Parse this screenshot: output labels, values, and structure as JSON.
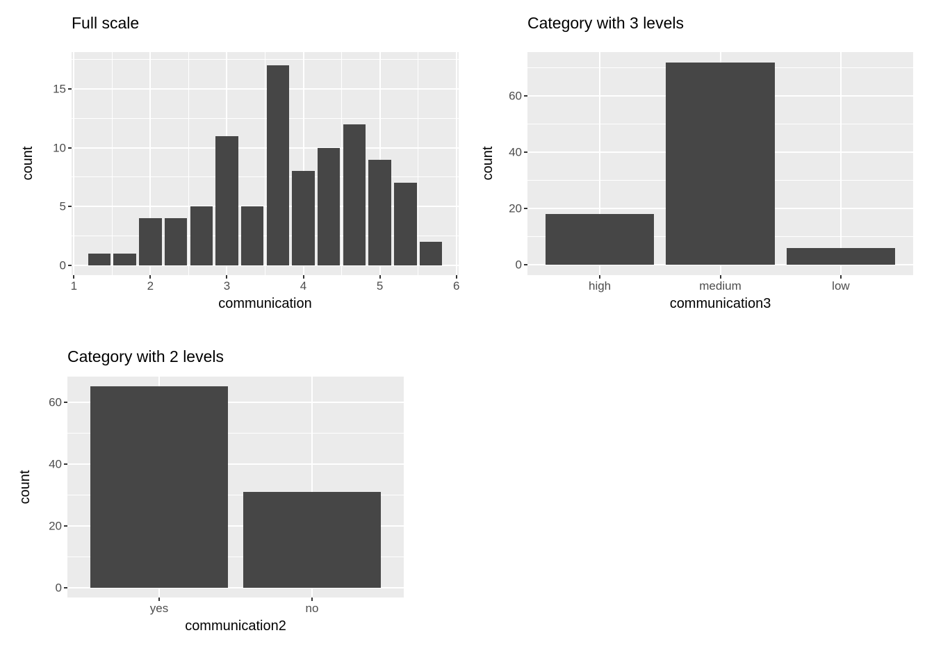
{
  "figure": {
    "background": "#ffffff",
    "total_count": 96
  },
  "style": {
    "bar_fill": "#464646",
    "panel_background": "#EBEBEB",
    "grid_color": "#FFFFFF",
    "tick_mark_color": "#333333",
    "tick_label_color": "#4D4D4D",
    "title_color": "#000000"
  },
  "chart_data": [
    {
      "id": "full-scale-histogram",
      "type": "bar",
      "title": "Full scale",
      "xlabel": "communication",
      "ylabel": "count",
      "x": [
        1.333,
        1.667,
        2.0,
        2.333,
        2.667,
        3.0,
        3.333,
        3.667,
        4.0,
        4.333,
        4.667,
        5.0,
        5.333,
        5.667
      ],
      "values": [
        1,
        1,
        4,
        4,
        5,
        11,
        5,
        17,
        8,
        10,
        12,
        9,
        7,
        2
      ],
      "binwidth": 0.295,
      "xlim": [
        0.97,
        6.03
      ],
      "ylim": [
        -0.85,
        18.15
      ],
      "x_ticks": [
        1,
        2,
        3,
        4,
        5,
        6
      ],
      "x_minor": [
        1.5,
        2.5,
        3.5,
        4.5,
        5.5
      ],
      "y_ticks": [
        0,
        5,
        10,
        15
      ],
      "y_minor": [
        2.5,
        7.5,
        12.5,
        17.5
      ],
      "grid": true,
      "legend": "none"
    },
    {
      "id": "category-3-levels",
      "type": "bar",
      "title": "Category with 3 levels",
      "xlabel": "communication3",
      "ylabel": "count",
      "categories": [
        "high",
        "medium",
        "low"
      ],
      "values": [
        18,
        72,
        6
      ],
      "ylim": [
        -3.6,
        75.6
      ],
      "y_ticks": [
        0,
        20,
        40,
        60
      ],
      "y_minor": [
        10,
        30,
        50,
        70
      ],
      "grid": true,
      "legend": "none"
    },
    {
      "id": "category-2-levels",
      "type": "bar",
      "title": "Category with 2 levels",
      "xlabel": "communication2",
      "ylabel": "count",
      "categories": [
        "yes",
        "no"
      ],
      "values": [
        65,
        31
      ],
      "ylim": [
        -3.25,
        68.25
      ],
      "y_ticks": [
        0,
        20,
        40,
        60
      ],
      "y_minor": [
        10,
        30,
        50
      ],
      "grid": true,
      "legend": "none"
    }
  ]
}
